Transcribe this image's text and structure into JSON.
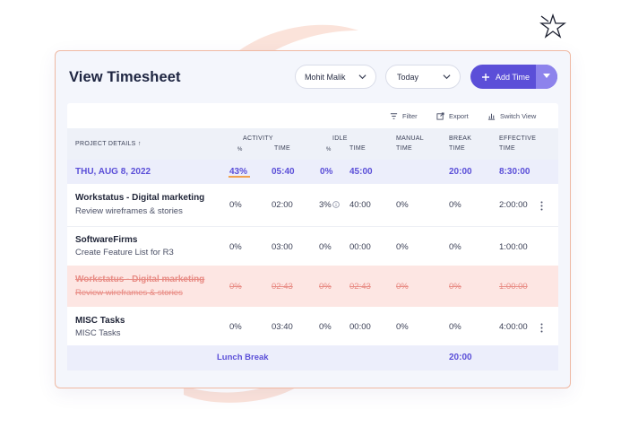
{
  "title": "View Timesheet",
  "filters": {
    "user": "Mohit Malik",
    "period": "Today"
  },
  "add_button": {
    "label": "Add Time",
    "plus_icon": "plus-icon",
    "dropdown_icon": "caret-down-icon"
  },
  "toolbar": {
    "filter": "Filter",
    "export": "Export",
    "switch_view": "Switch View"
  },
  "columns": {
    "project": "PROJECT DETAILS",
    "activity": "ACTIVITY",
    "activity_pct": "%",
    "activity_time": "TIME",
    "idle": "IDLE",
    "idle_pct": "%",
    "idle_time": "TIME",
    "manual_l1": "MANUAL",
    "manual_l2": "TIME",
    "break_l1": "BREAK",
    "break_l2": "TIME",
    "effective_l1": "EFFECTIVE",
    "effective_l2": "TIME"
  },
  "date_row": {
    "date": "THU, AUG 8, 2022",
    "activity_pct": "43%",
    "activity_time": "05:40",
    "idle_pct": "0%",
    "idle_time": "45:00",
    "break_time": "20:00",
    "effective_time": "8:30:00"
  },
  "rows": [
    {
      "project": "Workstatus - Digital marketing",
      "task": "Review wireframes & stories",
      "activity_pct": "0%",
      "activity_time": "02:00",
      "idle_pct": "3%",
      "idle_time": "40:00",
      "manual": "0%",
      "break": "0%",
      "effective": "2:00:00"
    },
    {
      "project": "SoftwareFirms",
      "task": "Create Feature List for R3",
      "activity_pct": "0%",
      "activity_time": "03:00",
      "idle_pct": "0%",
      "idle_time": "00:00",
      "manual": "0%",
      "break": "0%",
      "effective": "1:00:00"
    },
    {
      "project": "Workstatus - Digital marketing",
      "task": "Review wireframes & stories",
      "activity_pct": "0%",
      "activity_time": "02:43",
      "idle_pct": "0%",
      "idle_time": "02:43",
      "manual": "0%",
      "break": "0%",
      "effective": "1:00:00"
    },
    {
      "project": "MISC Tasks",
      "task": "MISC Tasks",
      "activity_pct": "0%",
      "activity_time": "03:40",
      "idle_pct": "0%",
      "idle_time": "00:00",
      "manual": "0%",
      "break": "0%",
      "effective": "4:00:00"
    }
  ],
  "footer": {
    "label": "Lunch Break",
    "break_time": "20:00"
  },
  "colors": {
    "accent": "#5b4fd8",
    "struck_row_bg": "#fde6e3",
    "struck_text": "#e88b84",
    "card_border": "#efb9a3"
  }
}
